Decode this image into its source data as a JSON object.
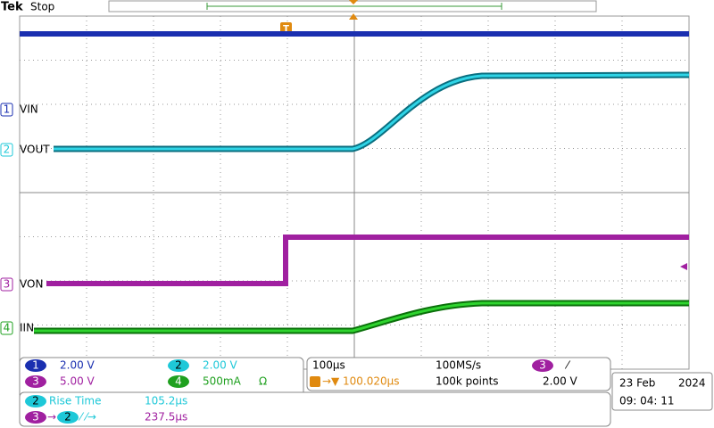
{
  "header": {
    "brand": "Tek",
    "status": "Stop"
  },
  "channels": [
    {
      "number": "1",
      "label": "VIN",
      "scale": "2.00 V"
    },
    {
      "number": "2",
      "label": "VOUT",
      "scale": "2.00 V"
    },
    {
      "number": "3",
      "label": "VON",
      "scale": "5.00 V"
    },
    {
      "number": "4",
      "label": "IIN",
      "scale": "500mA",
      "unit_symbol": "Ω"
    }
  ],
  "trigger_marker": "T",
  "horizontal": {
    "scale": "100µs",
    "sample_rate": "100MS/s",
    "position": "100.020µs",
    "record_length": "100k points"
  },
  "trigger": {
    "source": "3",
    "level": "2.00 V"
  },
  "measurements": [
    {
      "source": "2",
      "name": "Rise Time",
      "value": "105.2µs"
    },
    {
      "source": "3",
      "target": "2",
      "value": "237.5µs"
    }
  ],
  "datetime": {
    "date": "23 Feb",
    "year": "2024",
    "time": "09: 04: 11"
  }
}
